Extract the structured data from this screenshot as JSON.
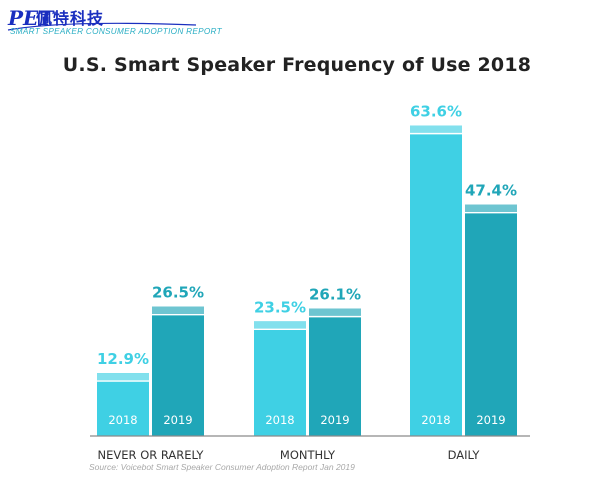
{
  "logo": {
    "text": "佩特科技",
    "mark": "PET"
  },
  "header": {
    "report_label": "SMART SPEAKER CONSUMER ADOPTION REPORT"
  },
  "chart_data": {
    "type": "bar",
    "title": "U.S. Smart Speaker Frequency of Use 2018",
    "categories": [
      "NEVER OR RARELY",
      "MONTHLY",
      "DAILY"
    ],
    "series": [
      {
        "name": "2018",
        "values": [
          12.9,
          23.5,
          63.6
        ],
        "color": "#3fd0e4"
      },
      {
        "name": "2019",
        "values": [
          26.5,
          26.1,
          47.4
        ],
        "color": "#20a6b8"
      }
    ],
    "value_suffix": "%",
    "ylim": [
      0,
      70
    ],
    "grid": false,
    "legend": "none",
    "source": "Source: Voicebot Smart Speaker Consumer Adoption Report Jan 2019"
  }
}
